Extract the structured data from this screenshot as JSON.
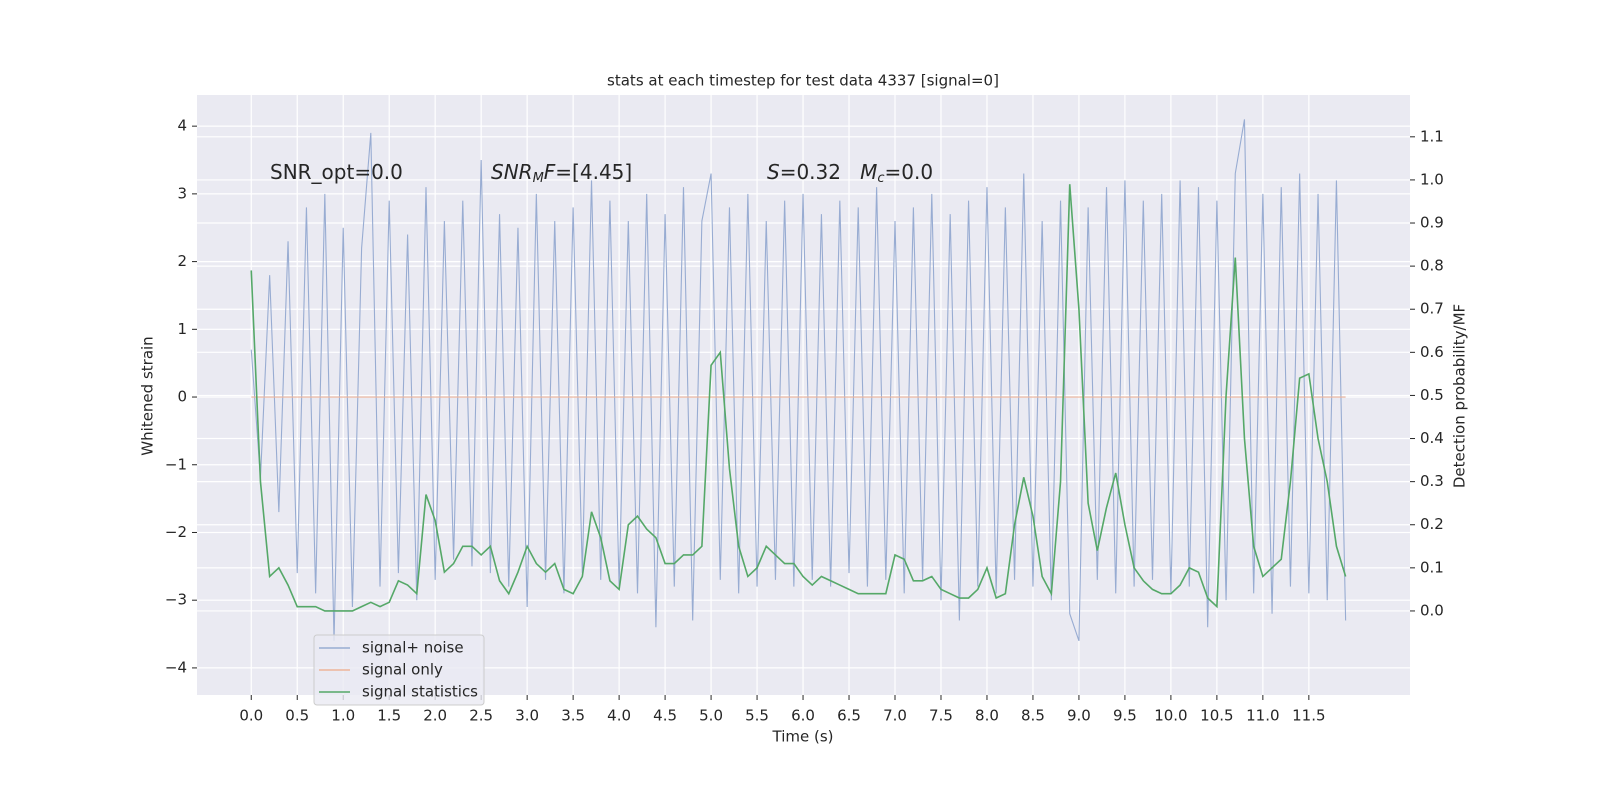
{
  "chart_data": {
    "type": "line",
    "title": "stats at each timestep for test data 4337 [signal=0]",
    "x_label": "Time (s)",
    "y_label": "Whitened strain",
    "y2_label": "Detection probability/MF",
    "x": [
      0.0,
      0.1,
      0.2,
      0.3,
      0.4,
      0.5,
      0.6,
      0.7,
      0.8,
      0.9,
      1.0,
      1.1,
      1.2,
      1.3,
      1.4,
      1.5,
      1.6,
      1.7,
      1.8,
      1.9,
      2.0,
      2.1,
      2.2,
      2.3,
      2.4,
      2.5,
      2.6,
      2.7,
      2.8,
      2.9,
      3.0,
      3.1,
      3.2,
      3.3,
      3.4,
      3.5,
      3.6,
      3.7,
      3.8,
      3.9,
      4.0,
      4.1,
      4.2,
      4.3,
      4.4,
      4.5,
      4.6,
      4.7,
      4.8,
      4.9,
      5.0,
      5.1,
      5.2,
      5.3,
      5.4,
      5.5,
      5.6,
      5.7,
      5.8,
      5.9,
      6.0,
      6.1,
      6.2,
      6.3,
      6.4,
      6.5,
      6.6,
      6.7,
      6.8,
      6.9,
      7.0,
      7.1,
      7.2,
      7.3,
      7.4,
      7.5,
      7.6,
      7.7,
      7.8,
      7.9,
      8.0,
      8.1,
      8.2,
      8.3,
      8.4,
      8.5,
      8.6,
      8.7,
      8.8,
      8.9,
      9.0,
      9.1,
      9.2,
      9.3,
      9.4,
      9.5,
      9.6,
      9.7,
      9.8,
      9.9,
      10.0,
      10.1,
      10.2,
      10.3,
      10.4,
      10.5,
      10.6,
      10.7,
      10.8,
      10.9,
      11.0,
      11.1,
      11.2,
      11.3,
      11.4,
      11.5,
      11.6,
      11.7,
      11.8,
      11.9
    ],
    "series": [
      {
        "name": "signal+ noise",
        "color": "#98acd2",
        "axis": "y",
        "values": [
          0.7,
          -1.2,
          1.8,
          -1.7,
          2.3,
          -2.6,
          2.8,
          -2.9,
          3.0,
          -3.6,
          2.5,
          -3.1,
          2.2,
          3.9,
          -2.8,
          2.9,
          -2.6,
          2.4,
          -3.0,
          3.1,
          -2.7,
          2.6,
          -2.4,
          2.9,
          -2.5,
          3.5,
          -2.6,
          2.7,
          -2.8,
          2.5,
          -3.1,
          3.0,
          -2.7,
          2.6,
          -2.9,
          2.8,
          -2.6,
          3.2,
          -2.7,
          2.9,
          -2.8,
          2.6,
          -2.9,
          3.0,
          -3.4,
          2.7,
          -2.8,
          3.1,
          -3.3,
          2.6,
          3.3,
          -2.7,
          2.8,
          -2.9,
          3.0,
          -2.8,
          2.6,
          -2.7,
          2.9,
          -2.8,
          3.0,
          -2.7,
          2.7,
          -2.8,
          2.9,
          -2.6,
          2.8,
          -2.8,
          3.1,
          -2.7,
          2.6,
          -2.9,
          2.8,
          -2.7,
          3.0,
          -3.0,
          2.7,
          -3.3,
          2.9,
          -2.8,
          3.1,
          -2.9,
          2.8,
          -2.7,
          3.3,
          -2.8,
          2.6,
          -3.0,
          2.9,
          -3.2,
          -3.6,
          2.8,
          -2.7,
          3.1,
          -2.9,
          3.2,
          -2.8,
          2.9,
          -2.7,
          3.0,
          -2.9,
          3.2,
          -2.8,
          3.1,
          -3.4,
          2.9,
          -3.0,
          3.3,
          4.1,
          -2.9,
          3.0,
          -3.2,
          3.1,
          -2.8,
          3.3,
          -2.9,
          3.0,
          -3.0,
          3.2,
          -3.3
        ]
      },
      {
        "name": "signal only",
        "color": "#eeb59a",
        "axis": "y",
        "values": [
          0,
          0,
          0,
          0,
          0,
          0,
          0,
          0,
          0,
          0,
          0,
          0,
          0,
          0,
          0,
          0,
          0,
          0,
          0,
          0,
          0,
          0,
          0,
          0,
          0,
          0,
          0,
          0,
          0,
          0,
          0,
          0,
          0,
          0,
          0,
          0,
          0,
          0,
          0,
          0,
          0,
          0,
          0,
          0,
          0,
          0,
          0,
          0,
          0,
          0,
          0,
          0,
          0,
          0,
          0,
          0,
          0,
          0,
          0,
          0,
          0,
          0,
          0,
          0,
          0,
          0,
          0,
          0,
          0,
          0,
          0,
          0,
          0,
          0,
          0,
          0,
          0,
          0,
          0,
          0,
          0,
          0,
          0,
          0,
          0,
          0,
          0,
          0,
          0,
          0,
          0,
          0,
          0,
          0,
          0,
          0,
          0,
          0,
          0,
          0,
          0,
          0,
          0,
          0,
          0,
          0,
          0,
          0,
          0,
          0,
          0,
          0,
          0,
          0,
          0,
          0,
          0,
          0,
          0,
          0
        ]
      },
      {
        "name": "signal statistics",
        "color": "#55a868",
        "axis": "y2",
        "values": [
          0.79,
          0.3,
          0.08,
          0.1,
          0.06,
          0.01,
          0.01,
          0.01,
          0.0,
          0.0,
          0.0,
          0.0,
          0.01,
          0.02,
          0.01,
          0.02,
          0.07,
          0.06,
          0.04,
          0.27,
          0.21,
          0.09,
          0.11,
          0.15,
          0.15,
          0.13,
          0.15,
          0.07,
          0.04,
          0.09,
          0.15,
          0.11,
          0.09,
          0.11,
          0.05,
          0.04,
          0.08,
          0.23,
          0.17,
          0.07,
          0.05,
          0.2,
          0.22,
          0.19,
          0.17,
          0.11,
          0.11,
          0.13,
          0.13,
          0.15,
          0.57,
          0.6,
          0.33,
          0.15,
          0.08,
          0.1,
          0.15,
          0.13,
          0.11,
          0.11,
          0.08,
          0.06,
          0.08,
          0.07,
          0.06,
          0.05,
          0.04,
          0.04,
          0.04,
          0.04,
          0.13,
          0.12,
          0.07,
          0.07,
          0.08,
          0.05,
          0.04,
          0.03,
          0.03,
          0.05,
          0.1,
          0.03,
          0.04,
          0.2,
          0.31,
          0.22,
          0.08,
          0.04,
          0.3,
          0.99,
          0.7,
          0.25,
          0.14,
          0.24,
          0.32,
          0.2,
          0.1,
          0.07,
          0.05,
          0.04,
          0.04,
          0.06,
          0.1,
          0.09,
          0.03,
          0.01,
          0.5,
          0.82,
          0.4,
          0.15,
          0.08,
          0.1,
          0.12,
          0.3,
          0.54,
          0.55,
          0.4,
          0.3,
          0.15,
          0.08
        ]
      }
    ],
    "xlim": [
      -0.59,
      12.6
    ],
    "ylim": [
      -4.4,
      4.46
    ],
    "y2lim": [
      -0.195,
      1.197
    ],
    "xticks": [
      {
        "value": 0.0,
        "label": "0.0"
      },
      {
        "value": 0.5,
        "label": "0.5"
      },
      {
        "value": 1.0,
        "label": "1.0"
      },
      {
        "value": 1.5,
        "label": "1.5"
      },
      {
        "value": 2.0,
        "label": "2.0"
      },
      {
        "value": 2.5,
        "label": "2.5"
      },
      {
        "value": 3.0,
        "label": "3.0"
      },
      {
        "value": 3.5,
        "label": "3.5"
      },
      {
        "value": 4.0,
        "label": "4.0"
      },
      {
        "value": 4.5,
        "label": "4.5"
      },
      {
        "value": 5.0,
        "label": "5.0"
      },
      {
        "value": 5.5,
        "label": "5.5"
      },
      {
        "value": 6.0,
        "label": "6.0"
      },
      {
        "value": 6.5,
        "label": "6.5"
      },
      {
        "value": 7.0,
        "label": "7.0"
      },
      {
        "value": 7.5,
        "label": "7.5"
      },
      {
        "value": 8.0,
        "label": "8.0"
      },
      {
        "value": 8.5,
        "label": "8.5"
      },
      {
        "value": 9.0,
        "label": "9.0"
      },
      {
        "value": 9.5,
        "label": "9.5"
      },
      {
        "value": 10.0,
        "label": "10.0"
      },
      {
        "value": 10.5,
        "label": "10.5"
      },
      {
        "value": 11.0,
        "label": "11.0"
      },
      {
        "value": 11.5,
        "label": "11.5"
      }
    ],
    "yticks": [
      {
        "value": -4,
        "label": "−4"
      },
      {
        "value": -3,
        "label": "−3"
      },
      {
        "value": -2,
        "label": "−2"
      },
      {
        "value": -1,
        "label": "−1"
      },
      0,
      1,
      2,
      3,
      4
    ],
    "y2ticks": [
      {
        "value": 0.0,
        "label": "0.0"
      },
      {
        "value": 0.1,
        "label": "0.1"
      },
      {
        "value": 0.2,
        "label": "0.2"
      },
      {
        "value": 0.3,
        "label": "0.3"
      },
      {
        "value": 0.4,
        "label": "0.4"
      },
      {
        "value": 0.5,
        "label": "0.5"
      },
      {
        "value": 0.6,
        "label": "0.6"
      },
      {
        "value": 0.7,
        "label": "0.7"
      },
      {
        "value": 0.8,
        "label": "0.8"
      },
      {
        "value": 0.9,
        "label": "0.9"
      },
      {
        "value": 1.0,
        "label": "1.0"
      },
      {
        "value": 1.1,
        "label": "1.1"
      }
    ],
    "grid": true,
    "legend": "lower left",
    "annotations": [
      {
        "parts": [
          {
            "text": "SNR_opt=0.0"
          }
        ]
      },
      {
        "parts": [
          {
            "text": "SNR",
            "italic": true
          },
          {
            "text": "M",
            "italic": true,
            "sub": true
          },
          {
            "text": "F",
            "italic": true
          },
          {
            "text": "=[4.45]"
          }
        ]
      },
      {
        "parts": [
          {
            "text": "S",
            "italic": true
          },
          {
            "text": "=0.32   "
          },
          {
            "text": "M",
            "italic": true
          },
          {
            "text": "c",
            "italic": true,
            "sub": true
          },
          {
            "text": "=0.0"
          }
        ]
      }
    ]
  }
}
